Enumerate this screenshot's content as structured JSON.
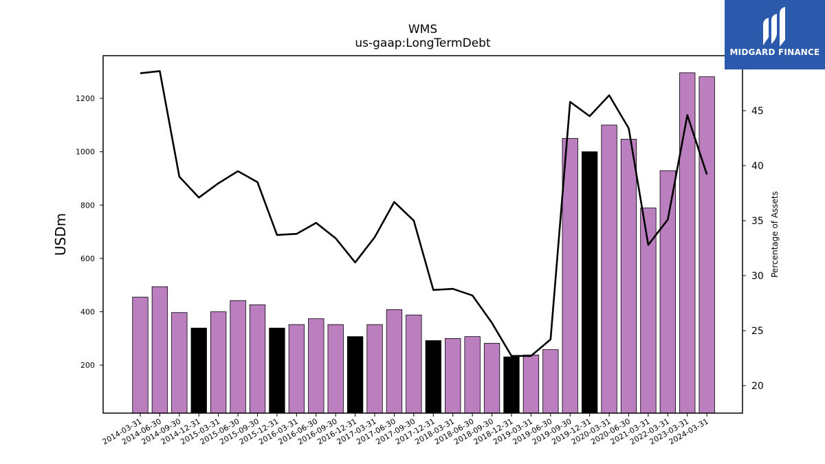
{
  "brand": {
    "name": "MIDGARD FINANCE",
    "color": "#2b5aad"
  },
  "chart_data": {
    "type": "bar",
    "title": "WMS",
    "subtitle": "us-gaap:LongTermDebt",
    "ylabel": "USDm",
    "y2label": "Percentage of Assets",
    "ylim": [
      20,
      1360
    ],
    "y2lim": [
      17.5,
      50
    ],
    "yticks": [
      200,
      400,
      600,
      800,
      1000,
      1200
    ],
    "y2ticks": [
      20,
      25,
      30,
      35,
      40,
      45
    ],
    "categories": [
      "2014-03-31",
      "2014-06-30",
      "2014-09-30",
      "2014-12-31",
      "2015-03-31",
      "2015-06-30",
      "2015-09-30",
      "2015-12-31",
      "2016-03-31",
      "2016-06-30",
      "2016-09-30",
      "2016-12-31",
      "2017-03-31",
      "2017-06-30",
      "2017-09-30",
      "2017-12-31",
      "2018-03-31",
      "2018-06-30",
      "2018-09-30",
      "2018-12-31",
      "2019-03-31",
      "2019-06-30",
      "2019-09-30",
      "2019-12-31",
      "2020-03-31",
      "2020-06-30",
      "2021-03-31",
      "2022-03-31",
      "2023-03-31",
      "2024-03-31"
    ],
    "series": [
      {
        "type": "bar",
        "values": [
          455,
          494,
          397,
          339,
          400,
          442,
          426,
          339,
          352,
          374,
          352,
          307,
          352,
          408,
          388,
          292,
          300,
          307,
          282,
          231,
          238,
          258,
          1050,
          1000,
          1100,
          1047,
          789,
          929,
          1296,
          1281
        ],
        "colors": [
          "#bb7fbf",
          "#bb7fbf",
          "#bb7fbf",
          "#000000",
          "#bb7fbf",
          "#bb7fbf",
          "#bb7fbf",
          "#000000",
          "#bb7fbf",
          "#bb7fbf",
          "#bb7fbf",
          "#000000",
          "#bb7fbf",
          "#bb7fbf",
          "#bb7fbf",
          "#000000",
          "#bb7fbf",
          "#bb7fbf",
          "#bb7fbf",
          "#000000",
          "#bb7fbf",
          "#bb7fbf",
          "#bb7fbf",
          "#000000",
          "#bb7fbf",
          "#bb7fbf",
          "#bb7fbf",
          "#bb7fbf",
          "#bb7fbf",
          "#bb7fbf"
        ]
      },
      {
        "type": "line",
        "axis": "right",
        "color": "#000000",
        "values": [
          48.4,
          48.6,
          39.0,
          37.1,
          38.4,
          39.5,
          38.5,
          33.7,
          33.8,
          34.8,
          33.4,
          31.2,
          33.5,
          36.7,
          35.0,
          28.7,
          28.8,
          28.2,
          25.7,
          22.7,
          22.7,
          24.2,
          45.8,
          44.5,
          46.4,
          43.4,
          32.8,
          35.1,
          44.6,
          39.2
        ]
      }
    ]
  }
}
